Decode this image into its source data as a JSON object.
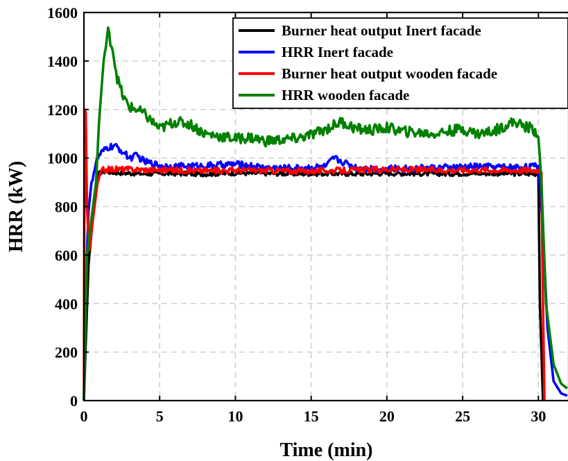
{
  "chart_data": {
    "type": "line",
    "title": "",
    "xlabel": "Time (min)",
    "ylabel": "HRR (kW)",
    "xlim": [
      0,
      32
    ],
    "ylim": [
      0,
      1600
    ],
    "xticks": [
      0,
      5,
      10,
      15,
      20,
      25,
      30
    ],
    "yticks": [
      0,
      200,
      400,
      600,
      800,
      1000,
      1200,
      1400,
      1600
    ],
    "grid": true,
    "legend_position": "top-right",
    "series": [
      {
        "name": "Burner heat output Inert facade",
        "color": "#000000",
        "x": [
          0,
          0.1,
          0.3,
          0.6,
          0.9,
          1.2,
          2,
          4,
          6,
          8,
          10,
          12,
          14,
          16,
          18,
          20,
          22,
          24,
          26,
          28,
          29,
          30,
          30.1,
          30.3
        ],
        "y": [
          0,
          200,
          560,
          760,
          930,
          945,
          940,
          935,
          936,
          934,
          938,
          937,
          935,
          936,
          935,
          937,
          936,
          935,
          937,
          936,
          935,
          935,
          400,
          0
        ]
      },
      {
        "name": "HRR Inert facade",
        "color": "#0000ff",
        "x": [
          0,
          0.15,
          0.3,
          0.5,
          0.8,
          1,
          1.5,
          2,
          2.5,
          3,
          3.5,
          4,
          5,
          6,
          8,
          10,
          12,
          14,
          16,
          16.5,
          18,
          20,
          22,
          24,
          26,
          28,
          30,
          30.3,
          30.6,
          31,
          31.5,
          31.9
        ],
        "y": [
          0,
          500,
          780,
          900,
          980,
          1010,
          1040,
          1050,
          1030,
          1000,
          1010,
          985,
          970,
          965,
          968,
          975,
          960,
          958,
          965,
          1000,
          960,
          955,
          958,
          960,
          965,
          962,
          965,
          700,
          300,
          80,
          30,
          20
        ]
      },
      {
        "name": "Burner heat output wooden facade",
        "color": "#ff0000",
        "x": [
          0,
          0.05,
          0.12,
          0.2,
          0.35,
          0.6,
          0.9,
          1.2,
          2,
          4,
          6,
          8,
          10,
          12,
          14,
          16,
          18,
          20,
          22,
          24,
          26,
          28,
          30,
          30.2,
          30.3,
          30.4
        ],
        "y": [
          0,
          1200,
          1180,
          800,
          620,
          750,
          900,
          950,
          955,
          952,
          950,
          948,
          950,
          949,
          946,
          948,
          950,
          953,
          952,
          950,
          951,
          950,
          950,
          950,
          400,
          0
        ]
      },
      {
        "name": "HRR wooden facade",
        "color": "#008000",
        "x": [
          0,
          0.2,
          0.5,
          0.8,
          1.0,
          1.3,
          1.6,
          1.9,
          2.2,
          2.6,
          3.0,
          3.5,
          4.0,
          4.5,
          5,
          6,
          7,
          8,
          9,
          10,
          11,
          12,
          13,
          14,
          15,
          16,
          17,
          18,
          19,
          20,
          21,
          22,
          23,
          24,
          25,
          26,
          27,
          28,
          28.5,
          29,
          29.5,
          30,
          30.2,
          30.5,
          31,
          31.5,
          31.9
        ],
        "y": [
          0,
          600,
          750,
          900,
          1150,
          1400,
          1520,
          1450,
          1330,
          1250,
          1210,
          1200,
          1180,
          1150,
          1120,
          1150,
          1140,
          1100,
          1090,
          1080,
          1085,
          1070,
          1075,
          1080,
          1095,
          1120,
          1150,
          1120,
          1115,
          1125,
          1110,
          1105,
          1100,
          1110,
          1120,
          1100,
          1110,
          1140,
          1150,
          1130,
          1125,
          1100,
          900,
          400,
          150,
          70,
          50
        ]
      }
    ]
  }
}
